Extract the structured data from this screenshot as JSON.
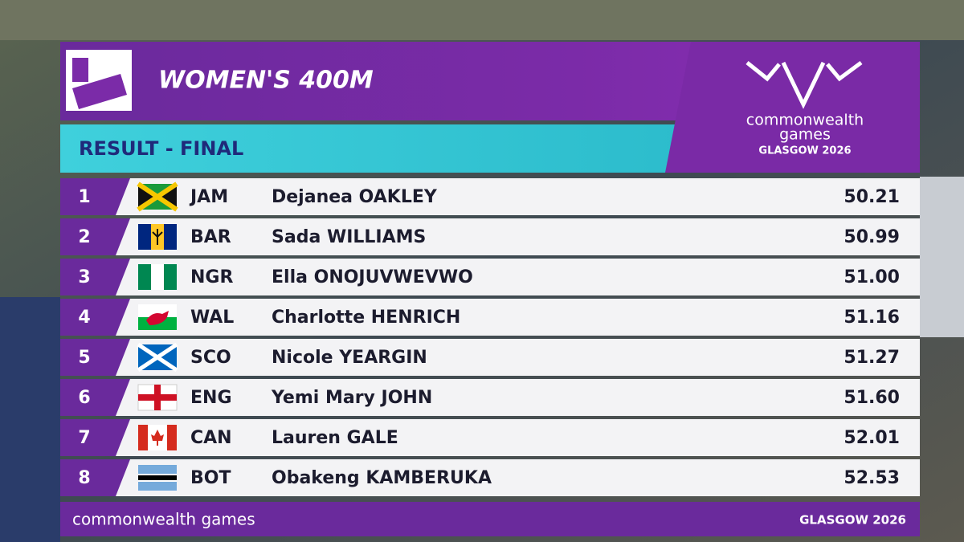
{
  "header": {
    "title": "WOMEN'S 400M",
    "subtitle": "RESULT - FINAL",
    "logo": {
      "line1": "commonwealth",
      "line2": "games",
      "line3": "GLASGOW 2026"
    }
  },
  "table": {
    "rows": [
      [
        1,
        "JAM",
        "Dejanea OAKLEY",
        "50.21"
      ],
      [
        2,
        "BAR",
        "Sada WILLIAMS",
        "50.99"
      ],
      [
        3,
        "NGR",
        "Ella ONOJUVWEVWO",
        "51.00"
      ],
      [
        4,
        "WAL",
        "Charlotte HENRICH",
        "51.16"
      ],
      [
        5,
        "SCO",
        "Nicole YEARGIN",
        "51.27"
      ],
      [
        6,
        "ENG",
        "Yemi Mary JOHN",
        "51.60"
      ],
      [
        7,
        "CAN",
        "Lauren GALE",
        "52.01"
      ],
      [
        8,
        "BOT",
        "Obakeng KAMBERUKA",
        "52.53"
      ]
    ]
  },
  "footer": {
    "left": "commonwealth games",
    "right": "GLASGOW 2026"
  }
}
